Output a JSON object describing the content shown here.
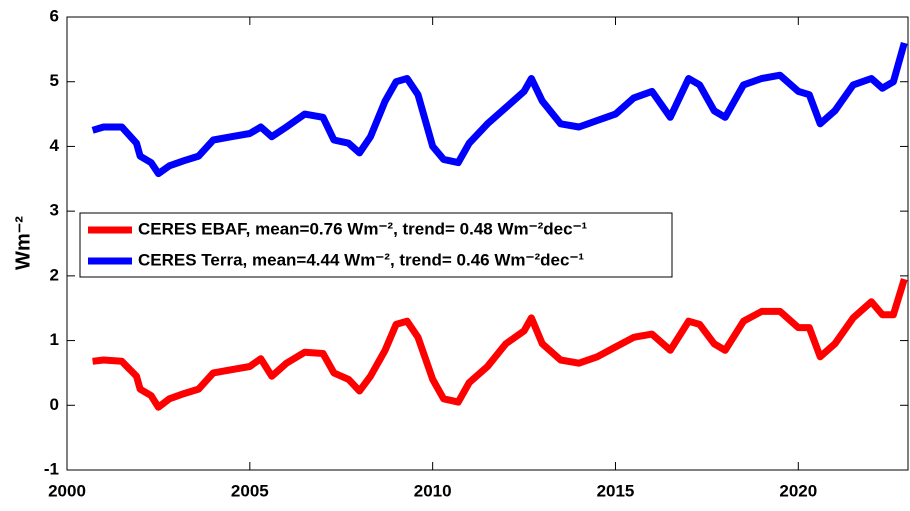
{
  "chart_data": {
    "type": "line",
    "ylabel": "Wm⁻²",
    "x": [
      2000.7,
      2001,
      2001.5,
      2001.9,
      2002,
      2002.3,
      2002.5,
      2002.8,
      2003.2,
      2003.6,
      2004,
      2004.5,
      2005,
      2005.3,
      2005.6,
      2006,
      2006.5,
      2007,
      2007.3,
      2007.7,
      2008,
      2008.3,
      2008.7,
      2009,
      2009.3,
      2009.6,
      2010,
      2010.3,
      2010.7,
      2011,
      2011.5,
      2012,
      2012.5,
      2012.7,
      2013,
      2013.5,
      2014,
      2014.5,
      2015,
      2015.5,
      2016,
      2016.5,
      2017,
      2017.3,
      2017.7,
      2018,
      2018.5,
      2019,
      2019.5,
      2020,
      2020.3,
      2020.6,
      2021,
      2021.5,
      2022,
      2022.3,
      2022.6,
      2022.9
    ],
    "series": [
      {
        "name": "CERES EBAF, mean=0.76 Wm⁻², trend= 0.48 Wm⁻²dec⁻¹",
        "color": "#ff0000",
        "values": [
          0.68,
          0.7,
          0.68,
          0.45,
          0.25,
          0.15,
          -0.03,
          0.1,
          0.18,
          0.25,
          0.5,
          0.55,
          0.6,
          0.72,
          0.45,
          0.65,
          0.82,
          0.8,
          0.5,
          0.4,
          0.22,
          0.45,
          0.85,
          1.25,
          1.3,
          1.05,
          0.4,
          0.1,
          0.05,
          0.35,
          0.6,
          0.95,
          1.15,
          1.35,
          0.95,
          0.7,
          0.65,
          0.75,
          0.9,
          1.05,
          1.1,
          0.85,
          1.3,
          1.25,
          0.95,
          0.85,
          1.3,
          1.45,
          1.45,
          1.2,
          1.2,
          0.75,
          0.95,
          1.35,
          1.6,
          1.4,
          1.4,
          1.95
        ]
      },
      {
        "name": "CERES Terra, mean=4.44 Wm⁻², trend= 0.46 Wm⁻²dec⁻¹",
        "color": "#0000ff",
        "values": [
          4.25,
          4.3,
          4.3,
          4.05,
          3.85,
          3.75,
          3.58,
          3.7,
          3.78,
          3.85,
          4.1,
          4.15,
          4.2,
          4.3,
          4.15,
          4.3,
          4.5,
          4.45,
          4.1,
          4.05,
          3.9,
          4.15,
          4.7,
          5.0,
          5.05,
          4.8,
          4.0,
          3.8,
          3.75,
          4.05,
          4.35,
          4.6,
          4.85,
          5.05,
          4.7,
          4.35,
          4.3,
          4.4,
          4.5,
          4.75,
          4.85,
          4.45,
          5.05,
          4.95,
          4.55,
          4.45,
          4.95,
          5.05,
          5.1,
          4.85,
          4.8,
          4.35,
          4.55,
          4.95,
          5.05,
          4.9,
          5.0,
          5.6
        ]
      }
    ],
    "xlim": [
      2000,
      2023
    ],
    "xticks": [
      2000,
      2005,
      2010,
      2015,
      2020
    ],
    "ylim": [
      -1,
      6
    ],
    "yticks": [
      -1,
      0,
      1,
      2,
      3,
      4,
      5,
      6
    ],
    "legend": "center-left"
  }
}
